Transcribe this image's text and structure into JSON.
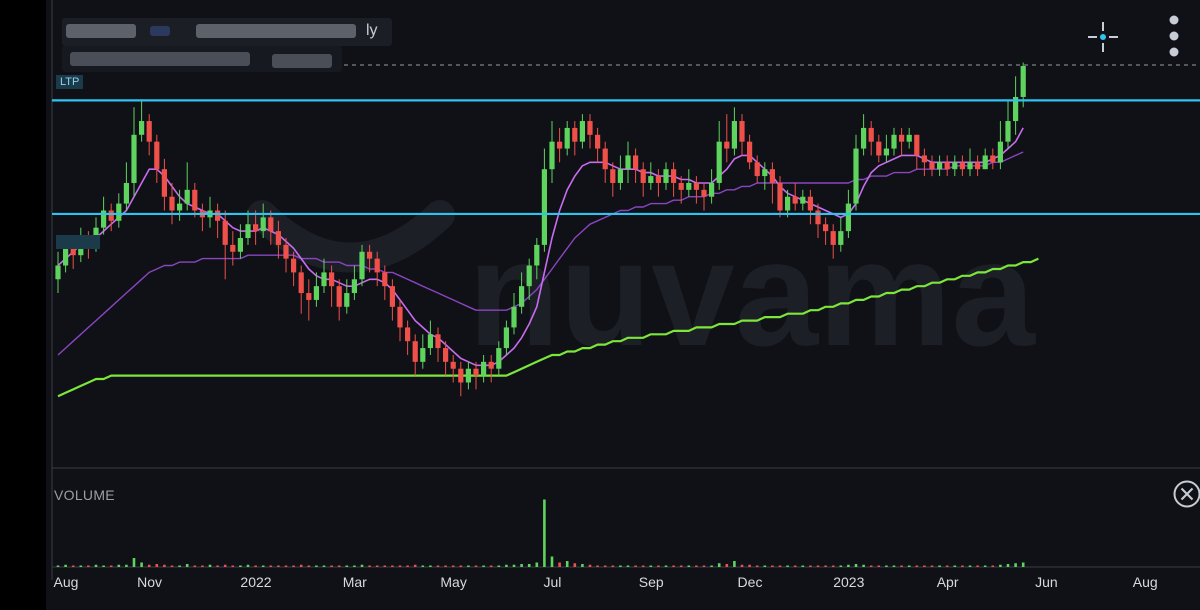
{
  "header": {
    "title_suffix": "ly"
  },
  "toolbar": {
    "crosshair_icon": "crosshair-icon",
    "menu_icon": "more-vertical-icon"
  },
  "volume": {
    "label": "VOLUME",
    "close_icon": "close-circle-icon"
  },
  "watermark": {
    "text": "nuvama"
  },
  "levels": {
    "upper_tag": "LTP",
    "lower_tag": ""
  },
  "colors": {
    "bull": "#5ed35e",
    "bear": "#f0504a",
    "level_line": "#2ec4f0",
    "ma_200": "#7ce63a",
    "ma_fast": "#c86cf0",
    "ma_mid": "#a855d8",
    "ma_slow": "#8a45c0",
    "grid": "#20232b",
    "background": "#0f1116"
  },
  "chart_data": {
    "type": "candlestick",
    "x_ticks": [
      "Aug",
      "Nov",
      "2022",
      "Mar",
      "May",
      "Jul",
      "Sep",
      "Dec",
      "2023",
      "Apr",
      "Jun",
      "Aug"
    ],
    "x_tick_pos": [
      0,
      11,
      25,
      38,
      51,
      64,
      77,
      90,
      103,
      116,
      129,
      142
    ],
    "ylim": [
      0,
      100
    ],
    "levels": [
      90,
      57
    ],
    "candles": [
      [
        38,
        42,
        46,
        34
      ],
      [
        42,
        47,
        50,
        40
      ],
      [
        47,
        45,
        49,
        41
      ],
      [
        45,
        50,
        53,
        43
      ],
      [
        50,
        48,
        52,
        44
      ],
      [
        48,
        53,
        56,
        46
      ],
      [
        53,
        58,
        62,
        51
      ],
      [
        58,
        55,
        60,
        52
      ],
      [
        55,
        60,
        63,
        53
      ],
      [
        60,
        66,
        72,
        58
      ],
      [
        66,
        80,
        88,
        62
      ],
      [
        80,
        84,
        90,
        78
      ],
      [
        84,
        78,
        86,
        74
      ],
      [
        78,
        70,
        80,
        66
      ],
      [
        70,
        62,
        73,
        58
      ],
      [
        62,
        58,
        66,
        54
      ],
      [
        58,
        60,
        64,
        55
      ],
      [
        60,
        64,
        72,
        58
      ],
      [
        64,
        58,
        66,
        56
      ],
      [
        58,
        56,
        60,
        52
      ],
      [
        56,
        58,
        62,
        53
      ],
      [
        58,
        55,
        60,
        50
      ],
      [
        55,
        48,
        58,
        38
      ],
      [
        48,
        46,
        52,
        42
      ],
      [
        46,
        50,
        54,
        44
      ],
      [
        50,
        54,
        58,
        48
      ],
      [
        54,
        52,
        58,
        48
      ],
      [
        52,
        56,
        60,
        50
      ],
      [
        56,
        52,
        58,
        48
      ],
      [
        52,
        48,
        55,
        44
      ],
      [
        48,
        44,
        50,
        40
      ],
      [
        44,
        40,
        46,
        36
      ],
      [
        40,
        34,
        42,
        28
      ],
      [
        34,
        32,
        38,
        26
      ],
      [
        32,
        36,
        40,
        30
      ],
      [
        36,
        40,
        44,
        34
      ],
      [
        40,
        36,
        42,
        30
      ],
      [
        36,
        30,
        38,
        26
      ],
      [
        30,
        34,
        38,
        28
      ],
      [
        34,
        38,
        42,
        32
      ],
      [
        38,
        46,
        48,
        36
      ],
      [
        46,
        44,
        48,
        40
      ],
      [
        44,
        40,
        46,
        36
      ],
      [
        40,
        36,
        42,
        32
      ],
      [
        36,
        30,
        38,
        26
      ],
      [
        30,
        24,
        32,
        20
      ],
      [
        24,
        20,
        26,
        16
      ],
      [
        20,
        14,
        22,
        10
      ],
      [
        14,
        18,
        22,
        12
      ],
      [
        18,
        22,
        26,
        16
      ],
      [
        22,
        18,
        24,
        14
      ],
      [
        18,
        14,
        20,
        10
      ],
      [
        14,
        12,
        16,
        8
      ],
      [
        12,
        8,
        14,
        4
      ],
      [
        8,
        12,
        14,
        6
      ],
      [
        12,
        10,
        14,
        6
      ],
      [
        10,
        14,
        16,
        8
      ],
      [
        14,
        12,
        16,
        8
      ],
      [
        12,
        18,
        20,
        10
      ],
      [
        18,
        24,
        26,
        16
      ],
      [
        24,
        30,
        34,
        22
      ],
      [
        30,
        36,
        40,
        28
      ],
      [
        36,
        42,
        44,
        32
      ],
      [
        42,
        48,
        50,
        38
      ],
      [
        48,
        70,
        76,
        46
      ],
      [
        70,
        78,
        84,
        66
      ],
      [
        78,
        76,
        82,
        72
      ],
      [
        76,
        82,
        84,
        74
      ],
      [
        82,
        78,
        84,
        74
      ],
      [
        78,
        84,
        86,
        76
      ],
      [
        84,
        80,
        86,
        76
      ],
      [
        80,
        76,
        82,
        72
      ],
      [
        76,
        70,
        78,
        66
      ],
      [
        70,
        66,
        72,
        62
      ],
      [
        66,
        70,
        74,
        64
      ],
      [
        70,
        74,
        78,
        66
      ],
      [
        74,
        70,
        76,
        66
      ],
      [
        70,
        66,
        72,
        62
      ],
      [
        66,
        68,
        72,
        64
      ],
      [
        68,
        66,
        70,
        62
      ],
      [
        66,
        70,
        72,
        64
      ],
      [
        70,
        66,
        72,
        62
      ],
      [
        66,
        64,
        68,
        60
      ],
      [
        64,
        66,
        70,
        62
      ],
      [
        66,
        64,
        68,
        60
      ],
      [
        64,
        62,
        66,
        58
      ],
      [
        62,
        66,
        70,
        60
      ],
      [
        66,
        78,
        84,
        64
      ],
      [
        78,
        76,
        86,
        72
      ],
      [
        76,
        84,
        88,
        74
      ],
      [
        84,
        78,
        86,
        74
      ],
      [
        78,
        72,
        80,
        70
      ],
      [
        72,
        68,
        74,
        66
      ],
      [
        68,
        70,
        72,
        64
      ],
      [
        70,
        66,
        72,
        60
      ],
      [
        66,
        58,
        68,
        56
      ],
      [
        58,
        62,
        64,
        56
      ],
      [
        62,
        60,
        66,
        58
      ],
      [
        60,
        62,
        64,
        58
      ],
      [
        62,
        58,
        64,
        54
      ],
      [
        58,
        54,
        60,
        50
      ],
      [
        54,
        52,
        56,
        48
      ],
      [
        52,
        48,
        54,
        44
      ],
      [
        48,
        52,
        56,
        46
      ],
      [
        52,
        60,
        64,
        50
      ],
      [
        60,
        76,
        80,
        58
      ],
      [
        76,
        82,
        86,
        74
      ],
      [
        82,
        78,
        84,
        74
      ],
      [
        78,
        74,
        80,
        72
      ],
      [
        74,
        76,
        80,
        72
      ],
      [
        76,
        80,
        82,
        74
      ],
      [
        80,
        78,
        82,
        74
      ],
      [
        78,
        80,
        82,
        76
      ],
      [
        80,
        74,
        80,
        70
      ],
      [
        74,
        72,
        76,
        68
      ],
      [
        72,
        70,
        74,
        68
      ],
      [
        70,
        72,
        74,
        68
      ],
      [
        72,
        70,
        74,
        68
      ],
      [
        70,
        72,
        74,
        68
      ],
      [
        72,
        70,
        74,
        68
      ],
      [
        70,
        72,
        76,
        68
      ],
      [
        72,
        70,
        74,
        68
      ],
      [
        70,
        74,
        76,
        70
      ],
      [
        74,
        72,
        76,
        70
      ],
      [
        72,
        78,
        84,
        70
      ],
      [
        78,
        84,
        90,
        76
      ],
      [
        84,
        91,
        97,
        80
      ],
      [
        91,
        100,
        101,
        88
      ]
    ],
    "volume": [
      [
        2,
        1
      ],
      [
        3,
        1
      ],
      [
        2,
        0
      ],
      [
        2,
        1
      ],
      [
        2,
        0
      ],
      [
        3,
        1
      ],
      [
        2,
        1
      ],
      [
        2,
        0
      ],
      [
        3,
        1
      ],
      [
        3,
        1
      ],
      [
        12,
        1
      ],
      [
        6,
        1
      ],
      [
        3,
        0
      ],
      [
        4,
        0
      ],
      [
        3,
        0
      ],
      [
        2,
        0
      ],
      [
        2,
        1
      ],
      [
        4,
        1
      ],
      [
        2,
        0
      ],
      [
        2,
        0
      ],
      [
        3,
        1
      ],
      [
        2,
        0
      ],
      [
        3,
        0
      ],
      [
        2,
        0
      ],
      [
        2,
        1
      ],
      [
        3,
        1
      ],
      [
        2,
        0
      ],
      [
        2,
        1
      ],
      [
        2,
        0
      ],
      [
        2,
        0
      ],
      [
        2,
        0
      ],
      [
        2,
        0
      ],
      [
        3,
        0
      ],
      [
        2,
        0
      ],
      [
        2,
        1
      ],
      [
        2,
        1
      ],
      [
        2,
        0
      ],
      [
        2,
        0
      ],
      [
        2,
        1
      ],
      [
        2,
        1
      ],
      [
        3,
        1
      ],
      [
        2,
        0
      ],
      [
        2,
        0
      ],
      [
        2,
        0
      ],
      [
        2,
        0
      ],
      [
        2,
        0
      ],
      [
        2,
        0
      ],
      [
        3,
        0
      ],
      [
        2,
        1
      ],
      [
        2,
        1
      ],
      [
        2,
        0
      ],
      [
        2,
        0
      ],
      [
        2,
        0
      ],
      [
        2,
        0
      ],
      [
        2,
        1
      ],
      [
        2,
        0
      ],
      [
        2,
        1
      ],
      [
        2,
        0
      ],
      [
        2,
        1
      ],
      [
        3,
        1
      ],
      [
        3,
        1
      ],
      [
        4,
        1
      ],
      [
        4,
        1
      ],
      [
        6,
        1
      ],
      [
        90,
        1
      ],
      [
        14,
        1
      ],
      [
        6,
        0
      ],
      [
        8,
        1
      ],
      [
        5,
        0
      ],
      [
        4,
        1
      ],
      [
        3,
        0
      ],
      [
        2,
        0
      ],
      [
        2,
        0
      ],
      [
        2,
        0
      ],
      [
        2,
        1
      ],
      [
        2,
        1
      ],
      [
        2,
        0
      ],
      [
        2,
        0
      ],
      [
        2,
        1
      ],
      [
        2,
        0
      ],
      [
        2,
        1
      ],
      [
        2,
        0
      ],
      [
        2,
        0
      ],
      [
        2,
        1
      ],
      [
        2,
        0
      ],
      [
        2,
        0
      ],
      [
        2,
        1
      ],
      [
        5,
        1
      ],
      [
        4,
        0
      ],
      [
        8,
        1
      ],
      [
        3,
        0
      ],
      [
        3,
        0
      ],
      [
        2,
        0
      ],
      [
        2,
        1
      ],
      [
        2,
        0
      ],
      [
        2,
        0
      ],
      [
        2,
        1
      ],
      [
        2,
        0
      ],
      [
        2,
        1
      ],
      [
        2,
        0
      ],
      [
        2,
        0
      ],
      [
        2,
        0
      ],
      [
        2,
        0
      ],
      [
        2,
        1
      ],
      [
        3,
        1
      ],
      [
        4,
        1
      ],
      [
        3,
        1
      ],
      [
        2,
        0
      ],
      [
        2,
        0
      ],
      [
        2,
        1
      ],
      [
        2,
        1
      ],
      [
        2,
        0
      ],
      [
        2,
        1
      ],
      [
        2,
        0
      ],
      [
        2,
        0
      ],
      [
        2,
        0
      ],
      [
        2,
        1
      ],
      [
        2,
        0
      ],
      [
        2,
        1
      ],
      [
        2,
        0
      ],
      [
        2,
        1
      ],
      [
        2,
        0
      ],
      [
        2,
        1
      ],
      [
        2,
        0
      ],
      [
        3,
        1
      ],
      [
        4,
        1
      ],
      [
        5,
        1
      ],
      [
        6,
        1
      ]
    ],
    "ma_200": [
      4,
      5,
      6,
      7,
      8,
      9,
      9,
      10,
      10,
      10,
      10,
      10,
      10,
      10,
      10,
      10,
      10,
      10,
      10,
      10,
      10,
      10,
      10,
      10,
      10,
      10,
      10,
      10,
      10,
      10,
      10,
      10,
      10,
      10,
      10,
      10,
      10,
      10,
      10,
      10,
      10,
      10,
      10,
      10,
      10,
      10,
      10,
      10,
      10,
      10,
      10,
      10,
      10,
      10,
      10,
      10,
      10,
      10,
      10,
      10,
      11,
      12,
      13,
      14,
      15,
      16,
      16,
      17,
      17,
      18,
      18,
      19,
      19,
      20,
      20,
      21,
      21,
      21,
      22,
      22,
      22,
      23,
      23,
      23,
      24,
      24,
      24,
      25,
      25,
      25,
      26,
      26,
      26,
      27,
      27,
      27,
      28,
      28,
      28,
      29,
      29,
      30,
      30,
      31,
      31,
      32,
      32,
      33,
      33,
      34,
      34,
      35,
      35,
      36,
      36,
      37,
      37,
      38,
      38,
      39,
      39,
      40,
      40,
      41,
      41,
      42,
      42,
      43,
      43,
      44
    ],
    "ma_fast": [
      42,
      44,
      46,
      48,
      49,
      50,
      52,
      54,
      56,
      58,
      62,
      66,
      70,
      70,
      68,
      65,
      62,
      60,
      59,
      58,
      57,
      57,
      55,
      53,
      52,
      52,
      52,
      53,
      52,
      51,
      49,
      47,
      44,
      41,
      39,
      38,
      38,
      37,
      36,
      36,
      37,
      38,
      38,
      37,
      35,
      32,
      29,
      26,
      24,
      22,
      21,
      19,
      17,
      15,
      14,
      13,
      13,
      13,
      14,
      16,
      18,
      21,
      25,
      30,
      40,
      50,
      58,
      64,
      68,
      71,
      72,
      72,
      72,
      71,
      70,
      70,
      70,
      69,
      69,
      68,
      68,
      68,
      67,
      67,
      66,
      66,
      66,
      68,
      70,
      73,
      74,
      74,
      72,
      70,
      68,
      65,
      63,
      62,
      61,
      60,
      59,
      58,
      57,
      56,
      57,
      60,
      65,
      69,
      71,
      72,
      73,
      74,
      74,
      74,
      73,
      72,
      72,
      72,
      72,
      72,
      72,
      72,
      72,
      73,
      74,
      76,
      78,
      82
    ],
    "ma_slow": [
      16,
      18,
      20,
      22,
      24,
      26,
      28,
      30,
      32,
      34,
      36,
      38,
      40,
      41,
      42,
      42,
      43,
      43,
      43,
      44,
      44,
      44,
      44,
      44,
      44,
      45,
      45,
      45,
      45,
      45,
      45,
      45,
      44,
      44,
      44,
      43,
      43,
      43,
      42,
      42,
      42,
      41,
      41,
      40,
      40,
      39,
      38,
      37,
      36,
      35,
      34,
      33,
      32,
      31,
      30,
      29,
      29,
      29,
      29,
      29,
      30,
      31,
      33,
      35,
      38,
      41,
      44,
      47,
      50,
      52,
      54,
      55,
      56,
      57,
      58,
      58,
      59,
      59,
      60,
      60,
      60,
      61,
      61,
      62,
      62,
      62,
      63,
      63,
      64,
      64,
      65,
      65,
      66,
      66,
      66,
      66,
      66,
      66,
      66,
      66,
      66,
      66,
      66,
      66,
      66,
      67,
      67,
      68,
      68,
      68,
      69,
      69,
      69,
      70,
      70,
      70,
      70,
      70,
      71,
      71,
      71,
      71,
      71,
      72,
      72,
      73,
      74,
      75
    ]
  }
}
